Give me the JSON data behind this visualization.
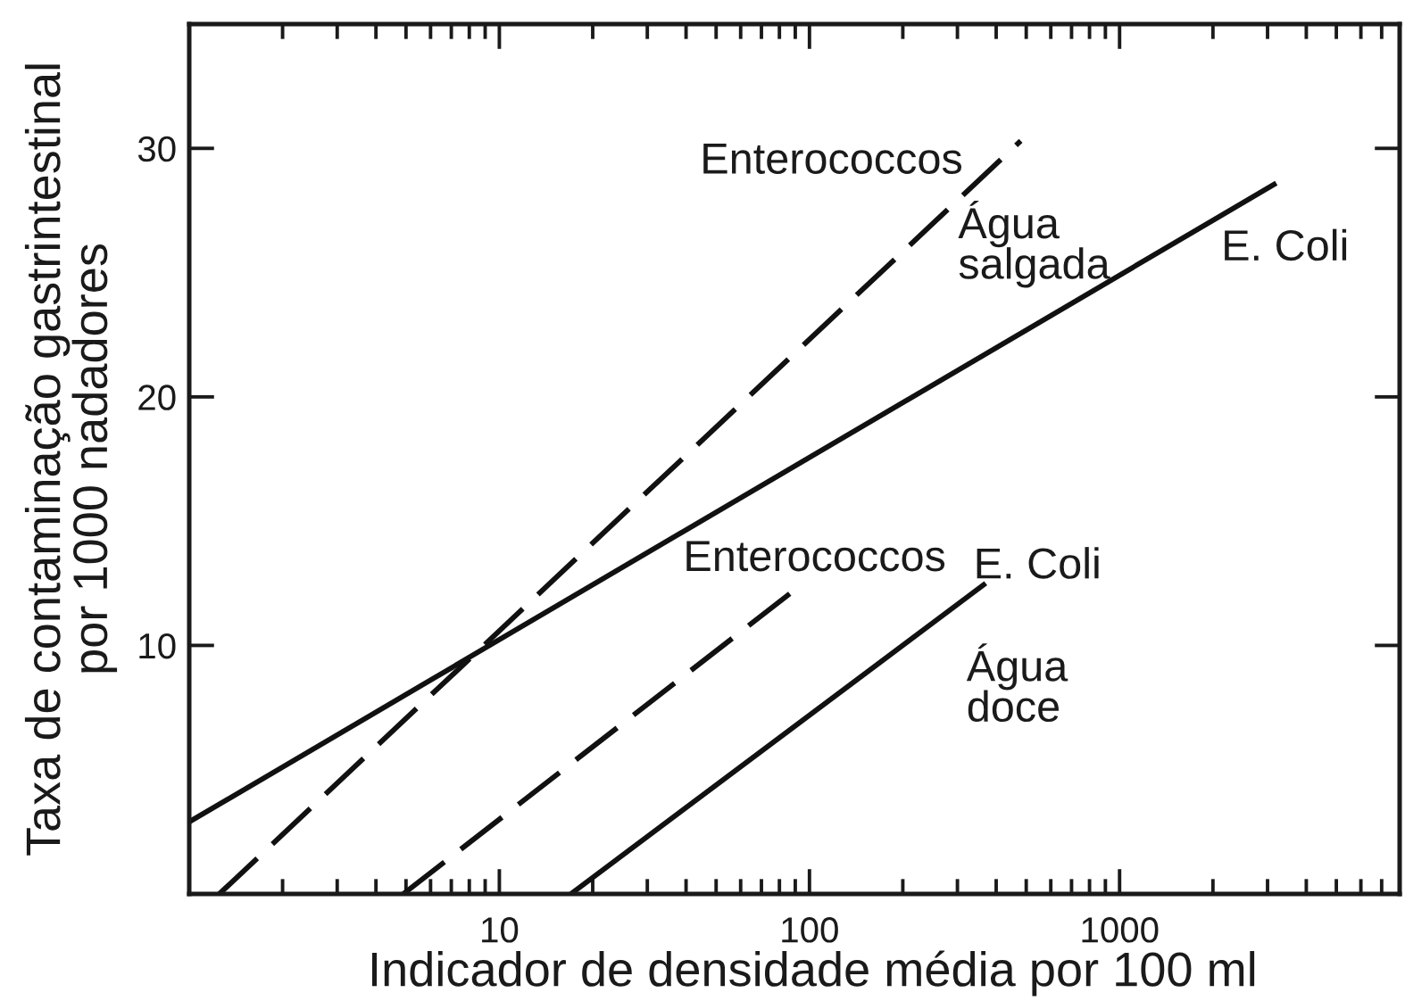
{
  "chart_data": {
    "type": "line",
    "xlabel": "Indicador de densidade média por 100 ml",
    "ylabel": "Taxa de contaminação gastrintestinal\npor 1000 nadadores",
    "log": "x",
    "grid": false,
    "marker": "none",
    "xlim": [
      1,
      8000
    ],
    "ylim": [
      0,
      35
    ],
    "xticks": [
      {
        "value": 2,
        "label": null
      },
      {
        "value": 3,
        "label": null
      },
      {
        "value": 4,
        "label": null
      },
      {
        "value": 5,
        "label": null
      },
      {
        "value": 6,
        "label": null
      },
      {
        "value": 7,
        "label": null
      },
      {
        "value": 8,
        "label": null
      },
      {
        "value": 9,
        "label": null
      },
      10,
      {
        "value": 20,
        "label": null
      },
      {
        "value": 30,
        "label": null
      },
      {
        "value": 40,
        "label": null
      },
      {
        "value": 50,
        "label": null
      },
      {
        "value": 60,
        "label": null
      },
      {
        "value": 70,
        "label": null
      },
      {
        "value": 80,
        "label": null
      },
      {
        "value": 90,
        "label": null
      },
      100,
      {
        "value": 200,
        "label": null
      },
      {
        "value": 300,
        "label": null
      },
      {
        "value": 400,
        "label": null
      },
      {
        "value": 500,
        "label": null
      },
      {
        "value": 600,
        "label": null
      },
      {
        "value": 700,
        "label": null
      },
      {
        "value": 800,
        "label": null
      },
      {
        "value": 900,
        "label": null
      },
      1000,
      {
        "value": 2000,
        "label": null
      },
      {
        "value": 3000,
        "label": null
      },
      {
        "value": 4000,
        "label": null
      },
      {
        "value": 5000,
        "label": null
      },
      {
        "value": 6000,
        "label": null
      },
      {
        "value": 7000,
        "label": null
      }
    ],
    "yticks": [
      10,
      20,
      30
    ],
    "series": [
      {
        "name": "E. Coli",
        "color": "#111111",
        "line_style": "solid",
        "x": [
          1,
          3200
        ],
        "values": [
          2.9,
          28.6
        ]
      },
      {
        "name": "Enterococcos",
        "color": "#111111",
        "line_style": "dashed",
        "x": [
          1.25,
          480
        ],
        "values": [
          0,
          30.3
        ]
      },
      {
        "name": "Enterococcos",
        "color": "#111111",
        "line_style": "dashed",
        "x": [
          4.9,
          91
        ],
        "values": [
          0,
          12.3
        ]
      },
      {
        "name": "E. Coli",
        "color": "#111111",
        "line_style": "solid",
        "x": [
          17,
          370
        ],
        "values": [
          0,
          12.5
        ]
      }
    ],
    "annotations": [
      "Água\nsalgada",
      "Água\ndoce"
    ]
  }
}
